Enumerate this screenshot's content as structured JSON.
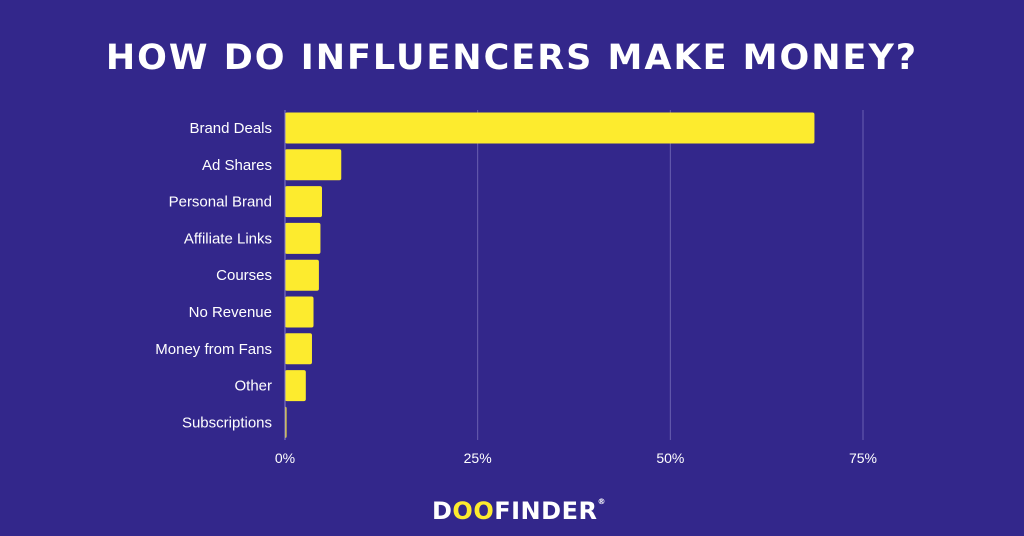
{
  "chart_data": {
    "type": "bar",
    "orientation": "horizontal",
    "title": "HOW DO INFLUENCERS MAKE MONEY?",
    "categories": [
      "Brand Deals",
      "Ad Shares",
      "Personal Brand",
      "Affiliate Links",
      "Courses",
      "No Revenue",
      "Money from Fans",
      "Other",
      "Subscriptions"
    ],
    "values": [
      68.7,
      7.3,
      4.8,
      4.6,
      4.4,
      3.7,
      3.5,
      2.7,
      0.2
    ],
    "xlim": [
      0,
      75
    ],
    "xticks": [
      0,
      25,
      50,
      75
    ],
    "xtick_labels": [
      "0%",
      "25%",
      "50%",
      "75%"
    ],
    "grid": true,
    "xlabel": "",
    "ylabel": ""
  },
  "colors": {
    "background": "#33278b",
    "bar": "#fdeb2e",
    "grid": "#6a5fb0",
    "text": "#ffffff"
  },
  "logo": {
    "text_prefix": "D",
    "text_oo": "OO",
    "text_suffix": "FINDER",
    "mark": "®"
  }
}
